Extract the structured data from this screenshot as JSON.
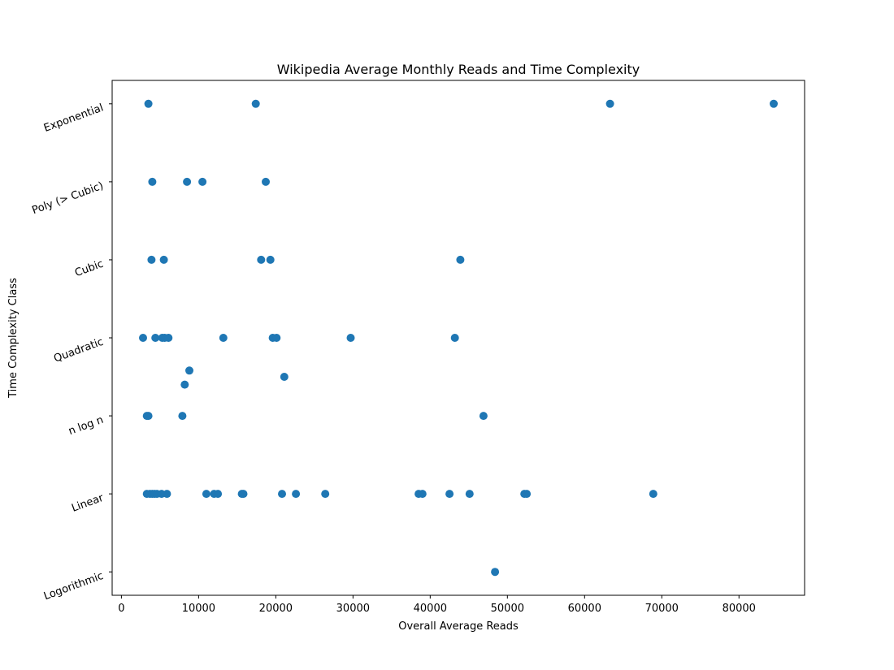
{
  "chart_data": {
    "type": "scatter",
    "title": "Wikipedia Average Monthly Reads and Time Complexity",
    "xlabel": "Overall Average Reads",
    "ylabel": "Time Complexity Class",
    "xlim": [
      -1200,
      88500
    ],
    "ylim": [
      -0.3,
      6.3
    ],
    "x_ticks": [
      0,
      10000,
      20000,
      30000,
      40000,
      50000,
      60000,
      70000,
      80000
    ],
    "y_categories": [
      "Logorithmic",
      "Linear",
      "n log n",
      "Quadratic",
      "Cubic",
      "Poly (> Cubic)",
      "Exponential"
    ],
    "grid": false,
    "marker_color": "#1f77b4",
    "points": [
      {
        "x": 48400,
        "y": 0
      },
      {
        "x": 3300,
        "y": 1
      },
      {
        "x": 3700,
        "y": 1
      },
      {
        "x": 4000,
        "y": 1
      },
      {
        "x": 4300,
        "y": 1
      },
      {
        "x": 4600,
        "y": 1
      },
      {
        "x": 5200,
        "y": 1
      },
      {
        "x": 5900,
        "y": 1
      },
      {
        "x": 11000,
        "y": 1
      },
      {
        "x": 12000,
        "y": 1
      },
      {
        "x": 12500,
        "y": 1
      },
      {
        "x": 15600,
        "y": 1
      },
      {
        "x": 15800,
        "y": 1
      },
      {
        "x": 20800,
        "y": 1
      },
      {
        "x": 22600,
        "y": 1
      },
      {
        "x": 26400,
        "y": 1
      },
      {
        "x": 38500,
        "y": 1
      },
      {
        "x": 39000,
        "y": 1
      },
      {
        "x": 42500,
        "y": 1
      },
      {
        "x": 45100,
        "y": 1
      },
      {
        "x": 52200,
        "y": 1
      },
      {
        "x": 52500,
        "y": 1
      },
      {
        "x": 68900,
        "y": 1
      },
      {
        "x": 3300,
        "y": 2
      },
      {
        "x": 3500,
        "y": 2
      },
      {
        "x": 7900,
        "y": 2
      },
      {
        "x": 46900,
        "y": 2
      },
      {
        "x": 8200,
        "y": 2.4
      },
      {
        "x": 8800,
        "y": 2.58
      },
      {
        "x": 21100,
        "y": 2.5
      },
      {
        "x": 2800,
        "y": 3
      },
      {
        "x": 4400,
        "y": 3
      },
      {
        "x": 5300,
        "y": 3
      },
      {
        "x": 5600,
        "y": 3
      },
      {
        "x": 6100,
        "y": 3
      },
      {
        "x": 13200,
        "y": 3
      },
      {
        "x": 19600,
        "y": 3
      },
      {
        "x": 20100,
        "y": 3
      },
      {
        "x": 29700,
        "y": 3
      },
      {
        "x": 43200,
        "y": 3
      },
      {
        "x": 3900,
        "y": 4
      },
      {
        "x": 5500,
        "y": 4
      },
      {
        "x": 18100,
        "y": 4
      },
      {
        "x": 19300,
        "y": 4
      },
      {
        "x": 43900,
        "y": 4
      },
      {
        "x": 4000,
        "y": 5
      },
      {
        "x": 8500,
        "y": 5
      },
      {
        "x": 10500,
        "y": 5
      },
      {
        "x": 18700,
        "y": 5
      },
      {
        "x": 3500,
        "y": 6
      },
      {
        "x": 17400,
        "y": 6
      },
      {
        "x": 63300,
        "y": 6
      },
      {
        "x": 84500,
        "y": 6
      }
    ]
  }
}
